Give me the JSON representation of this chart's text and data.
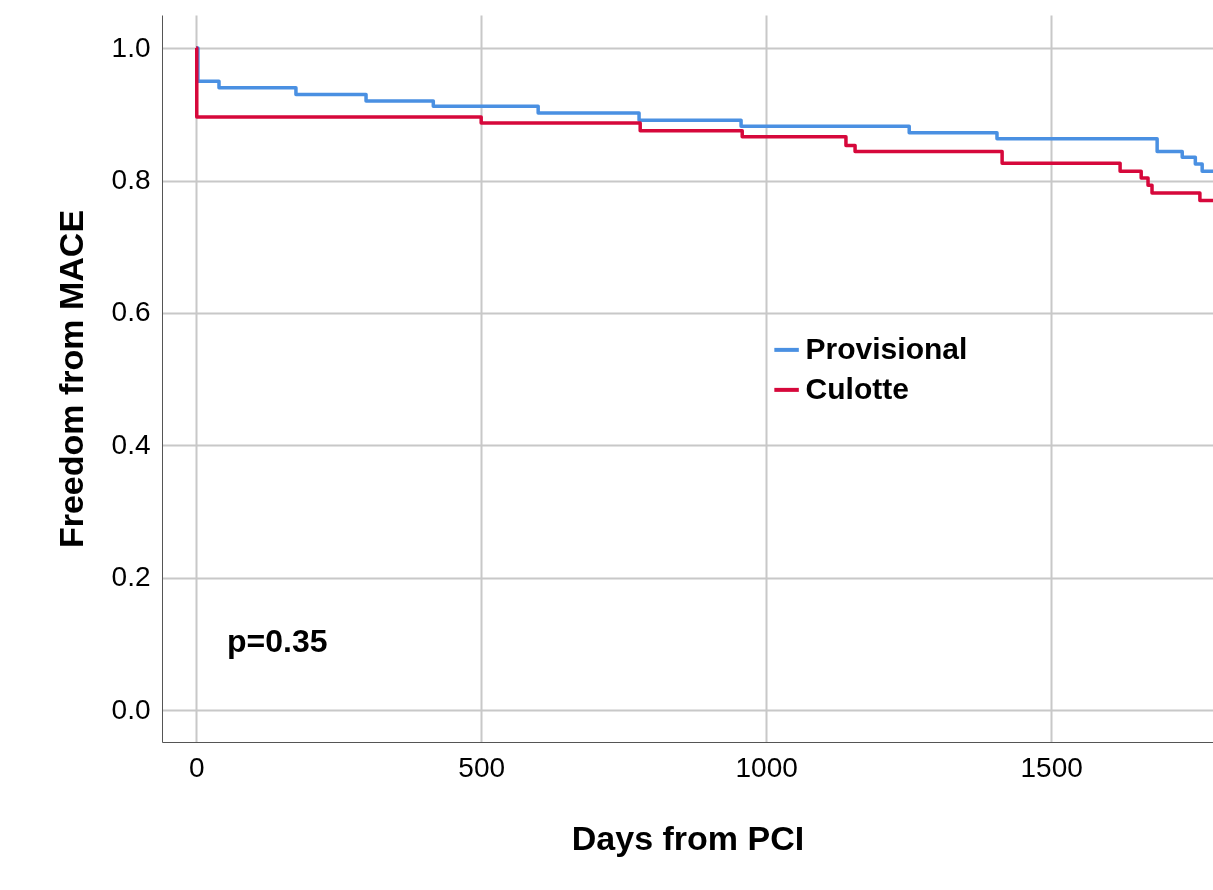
{
  "chart_data": {
    "type": "step",
    "xlabel": "Days from PCI",
    "ylabel": "Freedom from MACE",
    "annotations": [
      "p=0.35"
    ],
    "xlim": [
      -60,
      1784
    ],
    "ylim": [
      -0.048,
      1.05
    ],
    "xticks": [
      0,
      500,
      1000,
      1500
    ],
    "yticks": [
      {
        "value": 0,
        "label": "0.0"
      },
      0.2,
      0.4,
      0.6,
      0.8,
      {
        "value": 1,
        "label": "1.0"
      }
    ],
    "grid": true,
    "legend": "right",
    "line_style": "solid",
    "marker": "none",
    "series": [
      {
        "name": "Provisional",
        "color": "#4a90e2",
        "x": [
          0,
          3,
          40,
          175,
          298,
          416,
          600,
          777,
          956,
          1251,
          1405,
          1686,
          1730,
          1753,
          1765,
          1784
        ],
        "values": [
          1,
          0.95,
          0.94,
          0.93,
          0.92,
          0.912,
          0.902,
          0.891,
          0.882,
          0.872,
          0.863,
          0.844,
          0.835,
          0.825,
          0.814,
          0.814
        ]
      },
      {
        "name": "Culotte",
        "color": "#d6083b",
        "x": [
          0,
          1,
          500,
          779,
          958,
          1140,
          1156,
          1414,
          1621,
          1658,
          1670,
          1677,
          1761,
          1784
        ],
        "values": [
          1,
          0.896,
          0.887,
          0.875,
          0.866,
          0.853,
          0.844,
          0.826,
          0.814,
          0.804,
          0.793,
          0.781,
          0.77,
          0.77
        ]
      }
    ]
  }
}
